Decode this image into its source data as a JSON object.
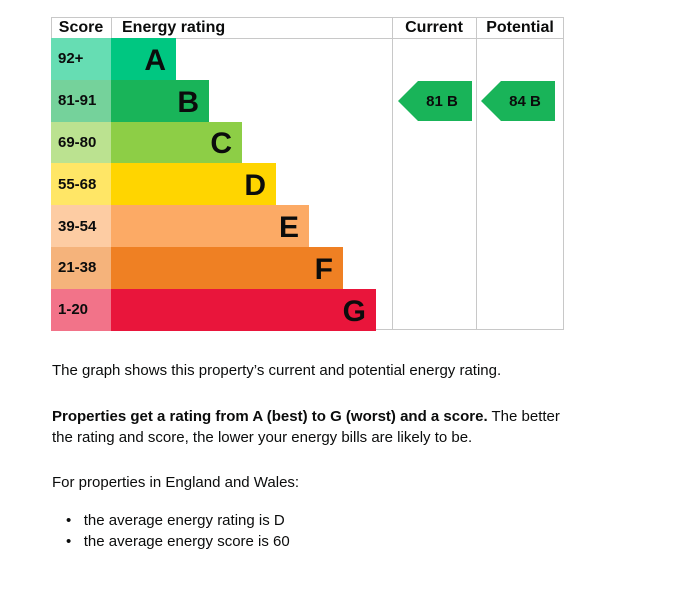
{
  "table": {
    "headers": [
      "Score",
      "Energy rating",
      "Current",
      "Potential"
    ],
    "bands": [
      {
        "score": "92+",
        "rating": "A"
      },
      {
        "score": "81-91",
        "rating": "B"
      },
      {
        "score": "69-80",
        "rating": "C"
      },
      {
        "score": "55-68",
        "rating": "D"
      },
      {
        "score": "39-54",
        "rating": "E"
      },
      {
        "score": "21-38",
        "rating": "F"
      },
      {
        "score": "1-20",
        "rating": "G"
      }
    ],
    "current": {
      "score": 81,
      "rating": "B"
    },
    "potential": {
      "score": 84,
      "rating": "B"
    }
  },
  "text": {
    "intro": "The graph shows this property’s current and potential energy rating.",
    "rating_bold": "Properties get a rating from A (best) to G (worst) and a score.",
    "rating_rest": " The better the rating and score, the lower your energy bills are likely to be.",
    "region": "For properties in England and Wales:",
    "list": [
      "the average energy rating is D",
      "the average energy score is 60"
    ]
  }
}
